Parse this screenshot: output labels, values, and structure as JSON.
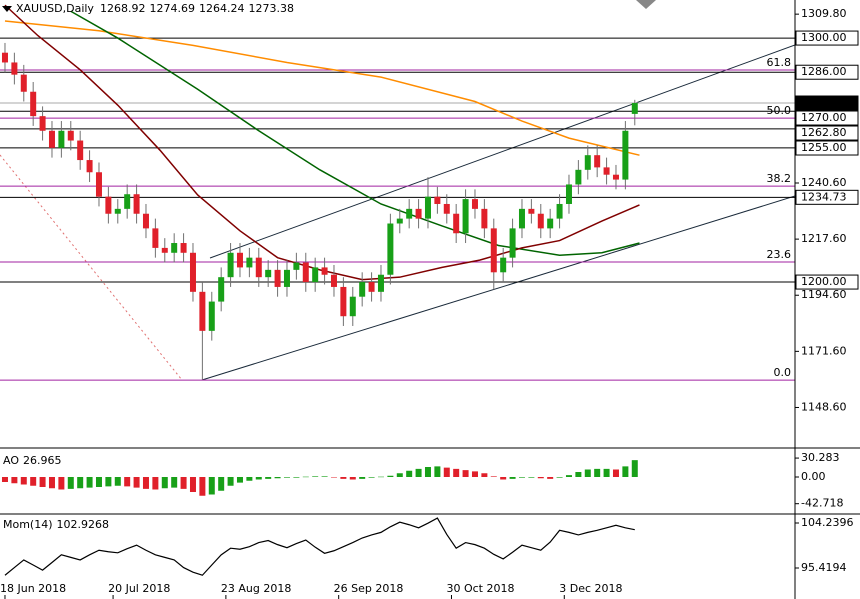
{
  "chart_data": [
    {
      "type": "candlestick",
      "title": "XAUUSD,Daily",
      "x": [
        0,
        2,
        4,
        6,
        8,
        10,
        12,
        14,
        16,
        18,
        20,
        22,
        24,
        26,
        28,
        30,
        32,
        34,
        36,
        38,
        40,
        42,
        44,
        46,
        48,
        50,
        52,
        54,
        56,
        58,
        60,
        62,
        64,
        66,
        68,
        70,
        72,
        74,
        76,
        78,
        80,
        82,
        84,
        86,
        88,
        90,
        92,
        94,
        96,
        98,
        100,
        102,
        104,
        106,
        108,
        110,
        112,
        114,
        116,
        118,
        120,
        122,
        124,
        126,
        128,
        130,
        132,
        134
      ],
      "open": [
        1294,
        1290,
        1285,
        1278,
        1268,
        1262,
        1255,
        1262,
        1258,
        1250,
        1245,
        1235,
        1228,
        1230,
        1236,
        1228,
        1222,
        1214,
        1212,
        1216,
        1212,
        1196,
        1180,
        1192,
        1202,
        1212,
        1206,
        1210,
        1202,
        1205,
        1198,
        1205,
        1208,
        1200,
        1206,
        1203,
        1198,
        1186,
        1194,
        1200,
        1196,
        1203,
        1224,
        1226,
        1230,
        1226,
        1235,
        1232,
        1228,
        1220,
        1234,
        1230,
        1222,
        1204,
        1210,
        1222,
        1230,
        1228,
        1222,
        1226,
        1232,
        1240,
        1246,
        1252,
        1247,
        1244,
        1242,
        1268.92
      ],
      "high": [
        1298,
        1294,
        1289,
        1282,
        1272,
        1266,
        1266,
        1266,
        1262,
        1254,
        1249,
        1239,
        1234,
        1240,
        1240,
        1232,
        1226,
        1218,
        1220,
        1220,
        1216,
        1200,
        1196,
        1206,
        1216,
        1216,
        1214,
        1214,
        1209,
        1209,
        1209,
        1212,
        1212,
        1210,
        1210,
        1207,
        1202,
        1198,
        1204,
        1204,
        1207,
        1228,
        1230,
        1234,
        1234,
        1243,
        1239,
        1236,
        1232,
        1238,
        1238,
        1234,
        1226,
        1214,
        1226,
        1234,
        1234,
        1232,
        1230,
        1236,
        1244,
        1250,
        1256,
        1256,
        1251,
        1248,
        1266,
        1274.69
      ],
      "low": [
        1286,
        1281,
        1274,
        1264,
        1258,
        1251,
        1251,
        1254,
        1246,
        1241,
        1231,
        1224,
        1224,
        1226,
        1224,
        1218,
        1210,
        1208,
        1208,
        1208,
        1192,
        1160,
        1176,
        1188,
        1198,
        1202,
        1202,
        1198,
        1198,
        1194,
        1194,
        1201,
        1196,
        1196,
        1199,
        1194,
        1182,
        1182,
        1190,
        1192,
        1192,
        1199,
        1220,
        1222,
        1222,
        1222,
        1228,
        1224,
        1216,
        1216,
        1226,
        1218,
        1197,
        1200,
        1206,
        1218,
        1224,
        1218,
        1218,
        1222,
        1228,
        1236,
        1242,
        1243,
        1240,
        1238,
        1238,
        1264.24
      ],
      "close": [
        1290,
        1285,
        1278,
        1268,
        1262,
        1255,
        1262,
        1258,
        1250,
        1245,
        1235,
        1228,
        1230,
        1236,
        1228,
        1222,
        1214,
        1212,
        1216,
        1212,
        1196,
        1180,
        1192,
        1202,
        1212,
        1206,
        1210,
        1202,
        1205,
        1198,
        1205,
        1208,
        1200,
        1206,
        1203,
        1198,
        1186,
        1194,
        1200,
        1196,
        1203,
        1224,
        1226,
        1230,
        1226,
        1235,
        1232,
        1228,
        1220,
        1234,
        1230,
        1222,
        1204,
        1210,
        1222,
        1230,
        1228,
        1222,
        1226,
        1232,
        1240,
        1246,
        1252,
        1247,
        1244,
        1242,
        1262,
        1273.38
      ],
      "up_color": "#18a018",
      "down_color": "#e0202a",
      "lines": [
        {
          "color": "#ff8c00",
          "x": [
            0,
            20,
            40,
            60,
            80,
            100,
            110,
            120,
            135
          ],
          "values": [
            1307,
            1303,
            1297,
            1290,
            1284,
            1274,
            1266,
            1259,
            1252
          ]
        },
        {
          "color": "#006400",
          "x": [
            14,
            24,
            41,
            54,
            67,
            80,
            93,
            105,
            118,
            127,
            135
          ],
          "values": [
            1311,
            1300,
            1279,
            1262,
            1246,
            1232,
            1223,
            1215,
            1211,
            1212,
            1216
          ]
        },
        {
          "color": "#800000",
          "x": [
            0,
            7,
            16,
            24,
            33,
            41,
            50,
            58,
            67,
            76,
            84,
            93,
            101,
            110,
            118,
            127,
            135
          ],
          "values": [
            1313.5,
            1301,
            1287,
            1272.5,
            1254,
            1235.7,
            1221,
            1210,
            1205,
            1201,
            1202,
            1206,
            1209,
            1214,
            1217,
            1225,
            1231.6
          ]
        }
      ],
      "levels": [
        {
          "value": 1300,
          "label": "1300.00"
        },
        {
          "value": 1286,
          "label": "1286.00"
        },
        {
          "value": 1270,
          "label": "1270.00"
        },
        {
          "value": 1262.8,
          "label": "1262.80"
        },
        {
          "value": 1255,
          "label": "1255.00"
        },
        {
          "value": 1234.73,
          "label": "1234.73"
        },
        {
          "value": 1200,
          "label": "1200.00"
        }
      ],
      "fib": [
        {
          "label": "61.8",
          "price": 1286.9
        },
        {
          "label": "50.0",
          "price": 1267.2
        },
        {
          "label": "38.2",
          "price": 1239.3
        },
        {
          "label": "23.6",
          "price": 1208.2
        },
        {
          "label": "0.0",
          "price": 1159.8
        }
      ],
      "fib_color": "#a020a0",
      "xlim": [
        -1.06,
        168.09
      ],
      "ylim": [
        1132.4,
        1315.6
      ],
      "yticks": [
        {
          "value": 1309.8,
          "label": "1309.80"
        },
        {
          "value": 1240.6,
          "label": "1240.60"
        },
        {
          "value": 1217.6,
          "label": "1217.60"
        },
        {
          "value": 1194.6,
          "label": "1194.60"
        },
        {
          "value": 1171.6,
          "label": "1171.60"
        },
        {
          "value": 1148.6,
          "label": "1148.60"
        }
      ]
    },
    {
      "type": "bar",
      "name": "AO",
      "x": [
        0,
        2,
        4,
        6,
        8,
        10,
        12,
        14,
        16,
        18,
        20,
        22,
        24,
        26,
        28,
        30,
        32,
        34,
        36,
        38,
        40,
        42,
        44,
        46,
        48,
        50,
        52,
        54,
        56,
        58,
        60,
        62,
        64,
        66,
        68,
        70,
        72,
        74,
        76,
        78,
        80,
        82,
        84,
        86,
        88,
        90,
        92,
        94,
        96,
        98,
        100,
        102,
        104,
        106,
        108,
        110,
        112,
        114,
        116,
        118,
        120,
        122,
        124,
        126,
        128,
        130,
        132,
        134
      ],
      "values": [
        -8,
        -10,
        -12,
        -14,
        -16,
        -18,
        -20,
        -19,
        -18,
        -17,
        -16,
        -15,
        -14,
        -15,
        -17,
        -19,
        -20,
        -18,
        -17,
        -19,
        -24,
        -30,
        -28,
        -22,
        -14,
        -9,
        -6,
        -4,
        -3,
        -2,
        -1,
        -1,
        0.5,
        1,
        1,
        0,
        -3,
        -4,
        -3,
        -1,
        0.5,
        2,
        6,
        10,
        13,
        16,
        17,
        15,
        13,
        11,
        9,
        6,
        1,
        -4,
        -3,
        -1,
        -1,
        -2,
        -3,
        -1,
        3,
        8,
        12,
        13,
        13,
        12,
        17,
        26.965
      ],
      "up_color": "#18a018",
      "down_color": "#e0202a",
      "xlim": [
        -1.06,
        168.09
      ],
      "ylim": [
        -57.6,
        44.8
      ],
      "yticks": [
        30.283,
        {
          "value": 0,
          "label": "0.00"
        },
        -42.718
      ]
    },
    {
      "type": "line",
      "name": "Mom(14)",
      "color": "#000000",
      "x": [
        0,
        2,
        4,
        6,
        8,
        10,
        12,
        14,
        16,
        18,
        20,
        22,
        24,
        26,
        28,
        30,
        32,
        34,
        36,
        38,
        40,
        42,
        44,
        46,
        48,
        50,
        52,
        54,
        56,
        58,
        60,
        62,
        64,
        66,
        68,
        70,
        72,
        74,
        76,
        78,
        80,
        82,
        84,
        86,
        88,
        90,
        92,
        94,
        96,
        98,
        100,
        102,
        104,
        106,
        108,
        110,
        112,
        114,
        116,
        118,
        120,
        122,
        124,
        126,
        128,
        130,
        132,
        134
      ],
      "values": [
        94.0,
        95.5,
        97.0,
        96.0,
        95.0,
        96.5,
        98.0,
        97.5,
        97.0,
        98.0,
        98.9,
        98.6,
        98.4,
        99.2,
        99.9,
        98.9,
        98.0,
        97.5,
        97.0,
        95.5,
        94.6,
        94.0,
        96.0,
        98.0,
        99.3,
        99.1,
        99.6,
        100.4,
        100.8,
        100.0,
        99.4,
        100.2,
        100.9,
        99.5,
        98.3,
        98.8,
        99.6,
        100.4,
        101.3,
        101.9,
        102.4,
        103.5,
        104.4,
        103.9,
        103.3,
        104.2,
        105.2,
        102.0,
        99.3,
        100.4,
        100.0,
        99.3,
        98.1,
        97.2,
        98.5,
        99.9,
        99.4,
        98.9,
        100.5,
        102.8,
        102.4,
        101.9,
        102.4,
        102.8,
        103.3,
        103.8,
        103.3,
        102.9268
      ],
      "xlim": [
        -1.06,
        168.09
      ],
      "ylim": [
        89.34,
        105.81
      ],
      "yticks": [
        104.2396,
        95.4194
      ],
      "xticks": [
        {
          "value": 0,
          "label": "18 Jun 2018"
        },
        {
          "value": 23,
          "label": "20 Jul 2018"
        },
        {
          "value": 47,
          "label": "23 Aug 2018"
        },
        {
          "value": 71,
          "label": "26 Sep 2018"
        },
        {
          "value": 95,
          "label": "30 Oct 2018"
        },
        {
          "value": 119,
          "label": "3 Dec 2018"
        }
      ]
    }
  ]
}
